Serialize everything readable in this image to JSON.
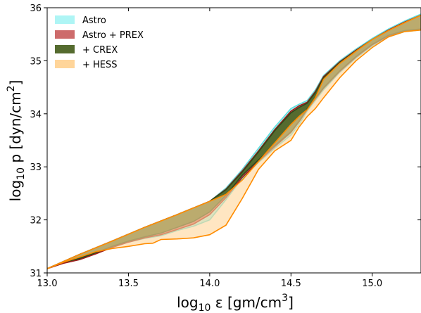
{
  "chart_data": {
    "type": "area",
    "xlabel": {
      "base": "log",
      "sub": "10",
      "rest": " ε [gm/cm",
      "sup": "3",
      "end": "]"
    },
    "ylabel": {
      "base": "log",
      "sub": "10",
      "rest": " p [dyn/cm",
      "sup": "2",
      "end": "]"
    },
    "xlim": [
      13.0,
      15.3
    ],
    "ylim": [
      31,
      36
    ],
    "xticks": [
      "13.0",
      "13.5",
      "14.0",
      "14.5",
      "15.0"
    ],
    "xtick_values": [
      13.0,
      13.5,
      14.0,
      14.5,
      15.0
    ],
    "yticks": [
      "31",
      "32",
      "33",
      "34",
      "35",
      "36"
    ],
    "ytick_values": [
      31,
      32,
      33,
      34,
      35,
      36
    ],
    "legend_position": "top-left",
    "series": [
      {
        "name": "Astro",
        "fill": "#aef5f5",
        "edge": "#5fdede",
        "opacity": 1,
        "upper": [
          [
            13.0,
            31.08
          ],
          [
            13.2,
            31.35
          ],
          [
            13.4,
            31.6
          ],
          [
            13.6,
            31.86
          ],
          [
            13.8,
            32.1
          ],
          [
            14.0,
            32.35
          ],
          [
            14.1,
            32.6
          ],
          [
            14.2,
            32.95
          ],
          [
            14.3,
            33.35
          ],
          [
            14.4,
            33.75
          ],
          [
            14.5,
            34.1
          ],
          [
            14.55,
            34.18
          ],
          [
            14.6,
            34.25
          ],
          [
            14.65,
            34.45
          ],
          [
            14.7,
            34.72
          ],
          [
            14.8,
            35.0
          ],
          [
            14.9,
            35.22
          ],
          [
            15.0,
            35.42
          ],
          [
            15.1,
            35.6
          ],
          [
            15.2,
            35.75
          ],
          [
            15.3,
            35.88
          ]
        ],
        "lower": [
          [
            13.0,
            31.08
          ],
          [
            13.1,
            31.2
          ],
          [
            13.2,
            31.28
          ],
          [
            13.3,
            31.38
          ],
          [
            13.4,
            31.48
          ],
          [
            13.5,
            31.58
          ],
          [
            13.6,
            31.65
          ],
          [
            13.7,
            31.7
          ],
          [
            13.8,
            31.8
          ],
          [
            13.9,
            31.88
          ],
          [
            14.0,
            32.0
          ],
          [
            14.1,
            32.38
          ],
          [
            14.2,
            32.78
          ],
          [
            14.3,
            33.08
          ],
          [
            14.4,
            33.35
          ],
          [
            14.5,
            33.6
          ],
          [
            14.55,
            33.8
          ],
          [
            14.6,
            34.05
          ],
          [
            14.65,
            34.25
          ],
          [
            14.7,
            34.45
          ],
          [
            14.8,
            34.78
          ],
          [
            14.9,
            35.05
          ],
          [
            15.0,
            35.28
          ],
          [
            15.1,
            35.45
          ],
          [
            15.2,
            35.55
          ],
          [
            15.3,
            35.58
          ]
        ]
      },
      {
        "name": "Astro + PREX",
        "fill": "#cd6b6b",
        "edge": "#a01c1c",
        "opacity": 1,
        "upper": [
          [
            13.0,
            31.08
          ],
          [
            13.2,
            31.35
          ],
          [
            13.4,
            31.6
          ],
          [
            13.6,
            31.86
          ],
          [
            13.8,
            32.1
          ],
          [
            14.0,
            32.35
          ],
          [
            14.1,
            32.58
          ],
          [
            14.2,
            32.92
          ],
          [
            14.3,
            33.3
          ],
          [
            14.4,
            33.7
          ],
          [
            14.5,
            34.05
          ],
          [
            14.55,
            34.15
          ],
          [
            14.6,
            34.22
          ],
          [
            14.65,
            34.42
          ],
          [
            14.7,
            34.7
          ],
          [
            14.8,
            34.98
          ],
          [
            14.9,
            35.2
          ],
          [
            15.0,
            35.4
          ],
          [
            15.1,
            35.58
          ],
          [
            15.2,
            35.73
          ],
          [
            15.3,
            35.86
          ]
        ],
        "lower": [
          [
            13.0,
            31.08
          ],
          [
            13.1,
            31.18
          ],
          [
            13.2,
            31.25
          ],
          [
            13.3,
            31.36
          ],
          [
            13.4,
            31.48
          ],
          [
            13.5,
            31.58
          ],
          [
            13.6,
            31.66
          ],
          [
            13.7,
            31.72
          ],
          [
            13.8,
            31.82
          ],
          [
            13.9,
            31.92
          ],
          [
            14.0,
            32.1
          ],
          [
            14.1,
            32.42
          ],
          [
            14.2,
            32.8
          ],
          [
            14.3,
            33.1
          ],
          [
            14.4,
            33.38
          ],
          [
            14.5,
            33.65
          ],
          [
            14.55,
            33.85
          ],
          [
            14.6,
            34.08
          ],
          [
            14.65,
            34.28
          ],
          [
            14.7,
            34.48
          ],
          [
            14.8,
            34.8
          ],
          [
            14.9,
            35.07
          ],
          [
            15.0,
            35.3
          ],
          [
            15.1,
            35.47
          ],
          [
            15.2,
            35.56
          ],
          [
            15.3,
            35.6
          ]
        ]
      },
      {
        "name": "+ CREX",
        "fill": "#556b2f",
        "edge": "#2e4a1a",
        "opacity": 1,
        "upper": [
          [
            13.0,
            31.08
          ],
          [
            13.2,
            31.35
          ],
          [
            13.4,
            31.6
          ],
          [
            13.6,
            31.86
          ],
          [
            13.8,
            32.1
          ],
          [
            14.0,
            32.35
          ],
          [
            14.1,
            32.57
          ],
          [
            14.2,
            32.9
          ],
          [
            14.3,
            33.28
          ],
          [
            14.4,
            33.68
          ],
          [
            14.5,
            34.02
          ],
          [
            14.55,
            34.12
          ],
          [
            14.6,
            34.2
          ],
          [
            14.65,
            34.4
          ],
          [
            14.7,
            34.68
          ],
          [
            14.8,
            34.97
          ],
          [
            14.9,
            35.19
          ],
          [
            15.0,
            35.4
          ],
          [
            15.1,
            35.57
          ],
          [
            15.2,
            35.72
          ],
          [
            15.3,
            35.86
          ]
        ],
        "lower": [
          [
            13.0,
            31.08
          ],
          [
            13.1,
            31.2
          ],
          [
            13.2,
            31.27
          ],
          [
            13.3,
            31.38
          ],
          [
            13.4,
            31.5
          ],
          [
            13.5,
            31.6
          ],
          [
            13.6,
            31.68
          ],
          [
            13.7,
            31.75
          ],
          [
            13.8,
            31.86
          ],
          [
            13.9,
            31.97
          ],
          [
            14.0,
            32.15
          ],
          [
            14.1,
            32.46
          ],
          [
            14.2,
            32.84
          ],
          [
            14.3,
            33.13
          ],
          [
            14.4,
            33.4
          ],
          [
            14.5,
            33.66
          ],
          [
            14.55,
            33.86
          ],
          [
            14.6,
            34.09
          ],
          [
            14.65,
            34.29
          ],
          [
            14.7,
            34.49
          ],
          [
            14.8,
            34.81
          ],
          [
            14.9,
            35.08
          ],
          [
            15.0,
            35.31
          ],
          [
            15.1,
            35.48
          ],
          [
            15.2,
            35.57
          ],
          [
            15.3,
            35.6
          ]
        ]
      },
      {
        "name": "+ HESS",
        "fill": "#ffd59a",
        "edge": "#ff8c00",
        "opacity": 0.6,
        "upper": [
          [
            13.0,
            31.08
          ],
          [
            13.2,
            31.35
          ],
          [
            13.4,
            31.6
          ],
          [
            13.6,
            31.86
          ],
          [
            13.8,
            32.1
          ],
          [
            14.0,
            32.35
          ],
          [
            14.1,
            32.48
          ],
          [
            14.2,
            32.75
          ],
          [
            14.3,
            33.1
          ],
          [
            14.4,
            33.45
          ],
          [
            14.5,
            33.8
          ],
          [
            14.55,
            33.95
          ],
          [
            14.6,
            34.08
          ],
          [
            14.65,
            34.3
          ],
          [
            14.7,
            34.65
          ],
          [
            14.8,
            34.95
          ],
          [
            14.9,
            35.18
          ],
          [
            15.0,
            35.4
          ],
          [
            15.1,
            35.57
          ],
          [
            15.2,
            35.72
          ],
          [
            15.3,
            35.86
          ]
        ],
        "lower": [
          [
            13.0,
            31.08
          ],
          [
            13.1,
            31.2
          ],
          [
            13.2,
            31.3
          ],
          [
            13.3,
            31.4
          ],
          [
            13.4,
            31.46
          ],
          [
            13.5,
            31.5
          ],
          [
            13.6,
            31.55
          ],
          [
            13.65,
            31.56
          ],
          [
            13.7,
            31.63
          ],
          [
            13.8,
            31.64
          ],
          [
            13.9,
            31.66
          ],
          [
            14.0,
            31.72
          ],
          [
            14.1,
            31.9
          ],
          [
            14.2,
            32.4
          ],
          [
            14.3,
            32.95
          ],
          [
            14.4,
            33.3
          ],
          [
            14.5,
            33.5
          ],
          [
            14.55,
            33.75
          ],
          [
            14.6,
            33.95
          ],
          [
            14.65,
            34.1
          ],
          [
            14.7,
            34.3
          ],
          [
            14.8,
            34.68
          ],
          [
            14.9,
            35.0
          ],
          [
            15.0,
            35.25
          ],
          [
            15.1,
            35.45
          ],
          [
            15.2,
            35.55
          ],
          [
            15.3,
            35.58
          ]
        ]
      }
    ]
  }
}
